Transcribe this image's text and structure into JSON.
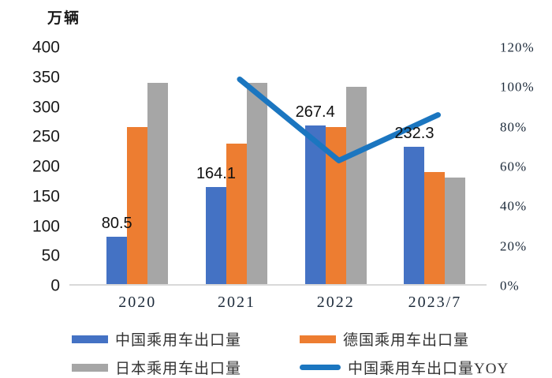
{
  "chart_data": {
    "type": "bar+line",
    "title": "",
    "categories": [
      "2020",
      "2021",
      "2022",
      "2023/7"
    ],
    "bar_series": [
      {
        "name": "中国乘用车出口量",
        "color": "#4472C4",
        "values": [
          80.5,
          164.1,
          267.4,
          232.3
        ],
        "data_labels": [
          "80.5",
          "164.1",
          "267.4",
          "232.3"
        ]
      },
      {
        "name": "德国乘用车出口量",
        "color": "#ED7D31",
        "values": [
          265,
          237,
          265,
          190
        ]
      },
      {
        "name": "日本乘用车出口量",
        "color": "#A6A6A6",
        "values": [
          340,
          340,
          333,
          180
        ]
      }
    ],
    "line_series": {
      "name": "中国乘用车出口量YOY",
      "color": "#1B76C0",
      "axis": "right",
      "values": [
        null,
        103.9,
        63,
        86
      ]
    },
    "left_axis": {
      "title": "万辆",
      "min": 0,
      "max": 400,
      "ticks": [
        0,
        50,
        100,
        150,
        200,
        250,
        300,
        350,
        400
      ]
    },
    "right_axis": {
      "min": 0,
      "max": 120,
      "tick_values": [
        0,
        20,
        40,
        60,
        80,
        100,
        120
      ],
      "tick_labels": [
        "0%",
        "20%",
        "40%",
        "60%",
        "80%",
        "100%",
        "120%"
      ]
    },
    "grid": false,
    "legend_position": "bottom"
  }
}
